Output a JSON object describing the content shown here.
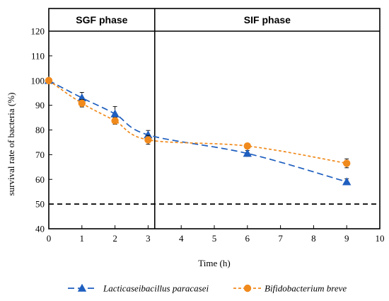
{
  "chart_data": {
    "type": "line",
    "title": "",
    "xlabel": "Time (h)",
    "ylabel": "survival rate of bacteria (%)",
    "xlim": [
      0,
      10
    ],
    "ylim": [
      40,
      120
    ],
    "x_ticks": [
      0,
      1,
      2,
      3,
      4,
      5,
      6,
      7,
      8,
      9,
      10
    ],
    "y_ticks": [
      40,
      50,
      60,
      70,
      80,
      90,
      100,
      110,
      120
    ],
    "grid": false,
    "legend_position": "bottom",
    "phases": [
      {
        "label": "SGF phase",
        "x_start": 0,
        "x_end": 3.2
      },
      {
        "label": "SIF phase",
        "x_start": 3.2,
        "x_end": 10
      }
    ],
    "reference_line": {
      "y": 50,
      "style": "dashed",
      "color": "#000000"
    },
    "series": [
      {
        "name": "Lacticaseibacillus paracasei",
        "color": "#1f5fbf",
        "marker": "triangle",
        "x": [
          0,
          1,
          2,
          3,
          6,
          9
        ],
        "y": [
          100,
          93,
          86.5,
          78,
          70.5,
          59
        ],
        "err": [
          0,
          2.2,
          3,
          1.8,
          1.2,
          1.2
        ]
      },
      {
        "name": "Bifidobacterium breve",
        "color": "#f08a1c",
        "marker": "circle",
        "x": [
          0,
          1,
          2,
          3,
          6,
          9
        ],
        "y": [
          100,
          90.8,
          83.7,
          76,
          73.5,
          66.5
        ],
        "err": [
          0,
          1.5,
          1.4,
          1.8,
          0.8,
          1.8
        ]
      }
    ]
  }
}
